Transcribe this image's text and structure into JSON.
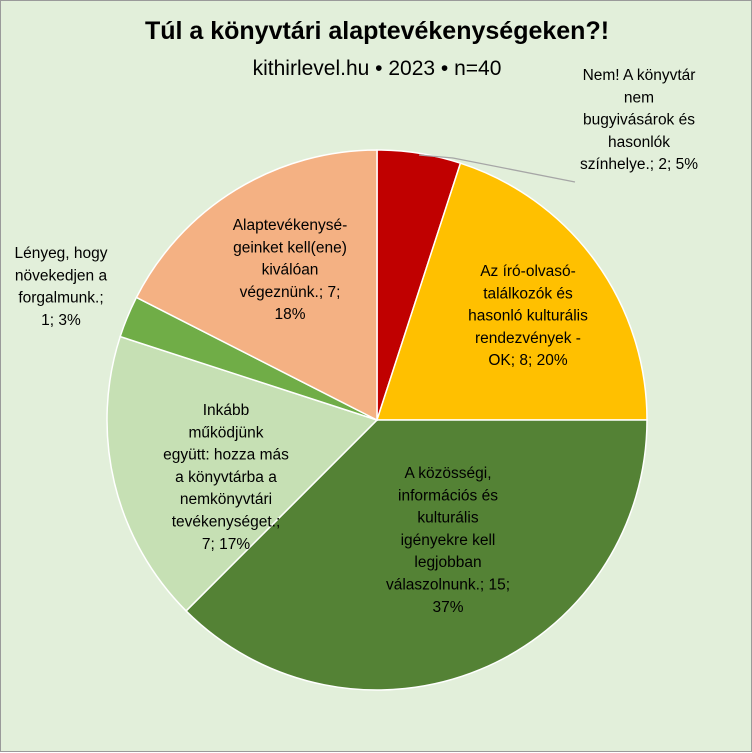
{
  "chart_data": {
    "type": "pie",
    "title": "Túl a könyvtári alaptevékenységeken?!",
    "subtitle": "kithirlevel.hu • 2023 • n=40",
    "start_angle_deg": 0,
    "direction": "clockwise",
    "slices": [
      {
        "label": "Nem! A könyvtár nem bugyivásárok és hasonlók színhelye.; 2; 5%",
        "category": "Nem! A könyvtár nem bugyivásárok és hasonlók színhelye.",
        "value": 2,
        "percent": "5%",
        "color": "#c00000"
      },
      {
        "label": "Az író-olvasó-találkozók és hasonló kulturális rendezvények - OK; 8; 20%",
        "category": "Az író-olvasó-találkozók és hasonló kulturális rendezvények - OK",
        "value": 8,
        "percent": "20%",
        "color": "#ffc000"
      },
      {
        "label": "A közösségi, információs és kulturális igényekre kell legjobban válaszolnunk.; 15; 37%",
        "category": "A közösségi, információs és kulturális igényekre kell legjobban válaszolnunk.",
        "value": 15,
        "percent": "37%",
        "color": "#548235"
      },
      {
        "label": "Inkább működjünk együtt: hozza más a könyvtárba a nemkönyvtári tevékenységet.; 7; 17%",
        "category": "Inkább működjünk együtt: hozza más a könyvtárba a nemkönyvtári tevékenységet.",
        "value": 7,
        "percent": "17%",
        "color": "#c6e0b4"
      },
      {
        "label": "Lényeg, hogy növekedjen a forgalmunk.; 1; 3%",
        "category": "Lényeg, hogy növekedjen a forgalmunk.",
        "value": 1,
        "percent": "3%",
        "color": "#70ad47"
      },
      {
        "label": "Alaptevékenységeinket kell(ene) kiválóan végeznünk.; 7; 18%",
        "category": "Alaptevékenységeinket kell(ene) kiválóan végeznünk.",
        "value": 7,
        "percent": "18%",
        "color": "#f4b183"
      }
    ],
    "label_lines": [
      [
        "Nem! A könyvtár",
        "nem",
        "bugyivásárok és",
        "hasonlók",
        "színhelye.; 2; 5%"
      ],
      [
        "Az író-olvasó-",
        "találkozók és",
        "hasonló kulturális",
        "rendezvények -",
        "OK; 8; 20%"
      ],
      [
        "A közösségi,",
        "információs és",
        "kulturális",
        "igényekre kell",
        "legjobban",
        "válaszolnunk.; 15;",
        "37%"
      ],
      [
        "Inkább",
        "működjünk",
        "együtt: hozza más",
        "a könyvtárba a",
        "nemkönyvtári",
        "tevékenységet.;",
        "7; 17%"
      ],
      [
        "Lényeg, hogy",
        "növekedjen a",
        "forgalmunk.;",
        "1; 3%"
      ],
      [
        "Alaptevékenysé-",
        "geinket kell(ene)",
        "kiválóan",
        "végeznünk.; 7;",
        "18%"
      ]
    ],
    "legend": "none"
  }
}
